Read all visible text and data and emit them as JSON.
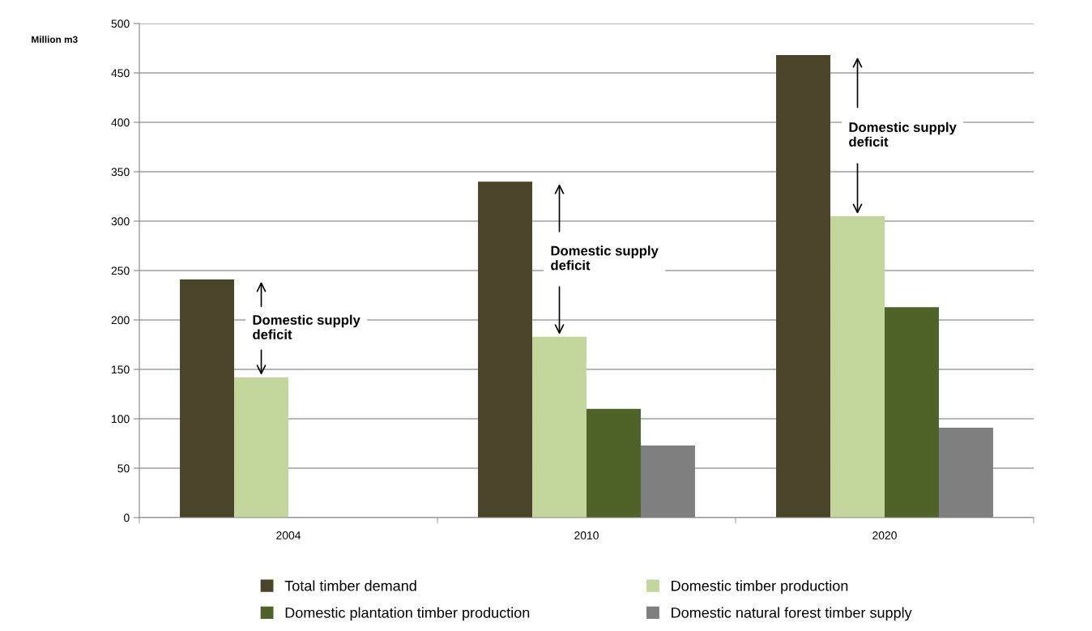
{
  "chart_data": {
    "type": "bar",
    "ylabel": "Million m3",
    "categories": [
      "2004",
      "2010",
      "2020"
    ],
    "series": [
      {
        "name": "Total timber demand",
        "color": "#4a442a",
        "values": [
          241,
          340,
          468
        ]
      },
      {
        "name": "Domestic timber production",
        "color": "#c3d69b",
        "values": [
          142,
          183,
          305
        ]
      },
      {
        "name": "Domestic plantation timber production",
        "color": "#4f6228",
        "values": [
          null,
          110,
          213
        ]
      },
      {
        "name": "Domestic natural forest timber supply",
        "color": "#7f7f7f",
        "values": [
          null,
          73,
          91
        ]
      }
    ],
    "ylim": [
      0,
      500
    ],
    "yticks": [
      0,
      50,
      100,
      150,
      200,
      250,
      300,
      350,
      400,
      450,
      500
    ],
    "grid": "y",
    "legend": "bottom",
    "annotations": [
      "Domestic supply\ndeficit",
      "Domestic supply\ndeficit",
      "Domestic supply\ndeficit"
    ]
  }
}
